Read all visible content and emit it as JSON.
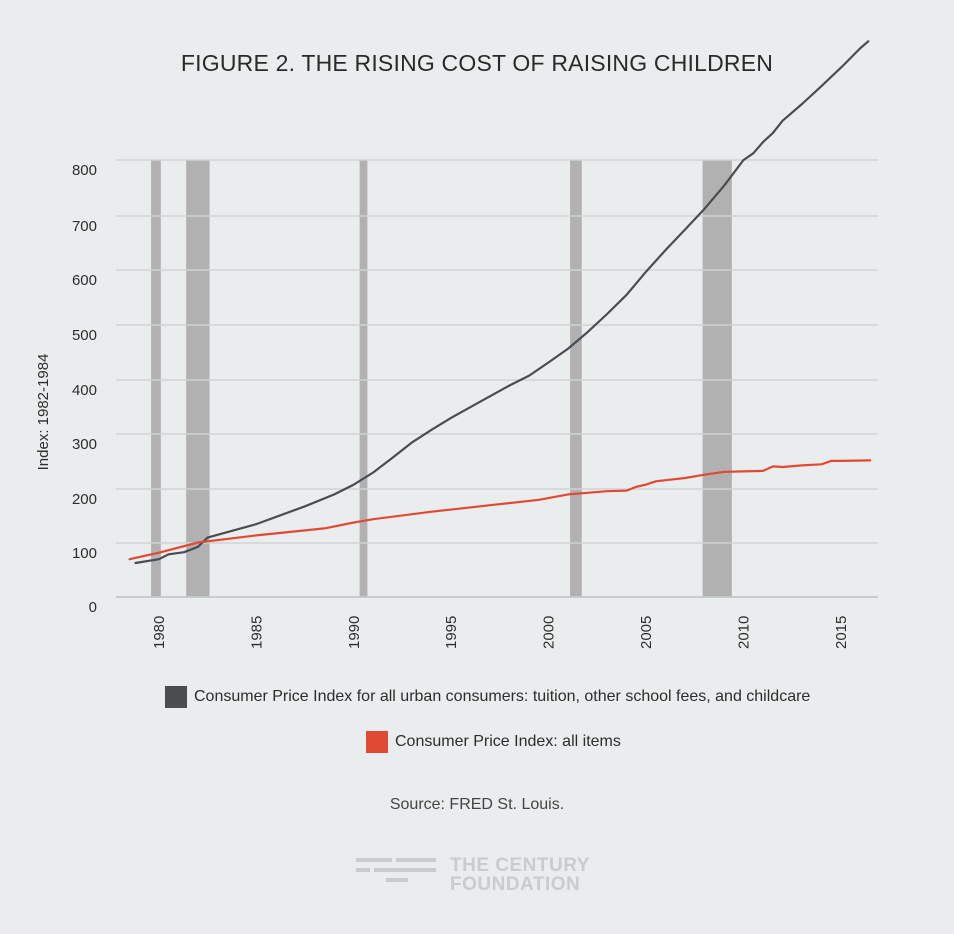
{
  "figure": {
    "title": "FIGURE 2. THE RISING COST OF RAISING CHILDREN",
    "source": "Source: FRED St. Louis."
  },
  "logo": {
    "line1": "THE CENTURY",
    "line2": "FOUNDATION",
    "color": "#c9cccc"
  },
  "chart_data": {
    "type": "line",
    "ylabel": "Index: 1982-1984",
    "xlabel": "",
    "xlim": [
      1977.8,
      2016.9
    ],
    "y_ticks": [
      0,
      100,
      200,
      300,
      400,
      500,
      600,
      700,
      800
    ],
    "x_ticks": [
      1980,
      1985,
      1990,
      1995,
      2000,
      2005,
      2010,
      2015
    ],
    "grid": true,
    "recessions": [
      [
        1979.6,
        1980.1
      ],
      [
        1981.4,
        1982.6
      ],
      [
        1990.3,
        1990.7
      ],
      [
        2001.1,
        2001.7
      ],
      [
        2007.9,
        2009.4
      ]
    ],
    "recession_color": "#b1b1b1",
    "series": [
      {
        "name": "Consumer Price Index for all urban consumers: tuition, other school fees, and childcare",
        "color": "#4a4c50",
        "x": [
          1978.8,
          1980,
          1980.5,
          1981.3,
          1982,
          1982.5,
          1985,
          1987.5,
          1989,
          1990,
          1991,
          1992,
          1993,
          1994,
          1995,
          1996.5,
          1998,
          1999,
          2000,
          2001,
          2002,
          2003,
          2004,
          2005,
          2006,
          2007,
          2008,
          2009,
          2010,
          2010.5,
          2011,
          2011.5,
          2012,
          2013,
          2014,
          2015,
          2016,
          2016.4
        ],
        "values": [
          63,
          70,
          79,
          83,
          93,
          110,
          135,
          168,
          190,
          208,
          230,
          257,
          285,
          308,
          330,
          360,
          390,
          408,
          432,
          457,
          487,
          520,
          555,
          597,
          637,
          675,
          713,
          754,
          800,
          812,
          832,
          848,
          870,
          900,
          932,
          965,
          1000,
          1012
        ]
      },
      {
        "name": "Consumer Price Index: all items",
        "color": "#e04a34",
        "x": [
          1978.5,
          1980,
          1982,
          1985,
          1988.5,
          1990,
          1991,
          1994,
          1997,
          1999.5,
          2001,
          2002,
          2003,
          2004,
          2004.5,
          2005,
          2005.5,
          2006,
          2007,
          2008,
          2009,
          2010,
          2011,
          2011.5,
          2012,
          2013,
          2014,
          2014.5,
          2015,
          2016.5
        ],
        "values": [
          70,
          82,
          101,
          114,
          127,
          138,
          144,
          158,
          170,
          180,
          190,
          193,
          196,
          197,
          204,
          208,
          214,
          216,
          220,
          226,
          231,
          232,
          233,
          241,
          240,
          243,
          245,
          251,
          251,
          252
        ]
      }
    ]
  }
}
